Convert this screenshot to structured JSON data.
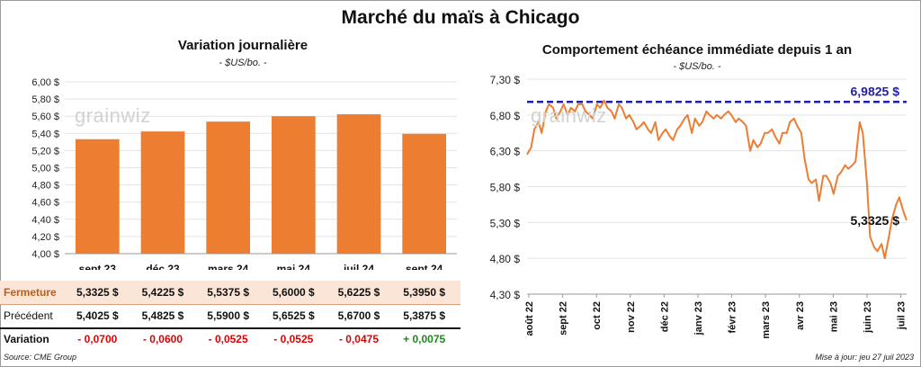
{
  "title": "Marché du maïs à Chicago",
  "left_chart": {
    "title": "Variation journalière",
    "unit": "- $US/bo. -",
    "watermark": "grainwiz"
  },
  "right_chart": {
    "title": "Comportement échéance immédiate depuis 1 an",
    "unit": "- $US/bo. -",
    "watermark": "grainwiz"
  },
  "table": {
    "rows": [
      {
        "label": "Fermeture",
        "values": [
          "5,3325 $",
          "5,4225 $",
          "5,5375 $",
          "5,6000 $",
          "5,6225 $",
          "5,3950 $"
        ]
      },
      {
        "label": "Précédent",
        "values": [
          "5,4025 $",
          "5,4825 $",
          "5,5900 $",
          "5,6525 $",
          "5,6700 $",
          "5,3875 $"
        ]
      },
      {
        "label": "Variation",
        "values": [
          "- 0,0700",
          "- 0,0600",
          "- 0,0525",
          "- 0,0525",
          "- 0,0475",
          "+ 0,0075"
        ]
      }
    ]
  },
  "colors": {
    "bar": "#ed7d31",
    "line": "#ed7d31",
    "reference": "#1f1fa8",
    "negative": "#e00000",
    "positive": "#1a8a1a",
    "row_highlight": "#fbe5d6"
  },
  "source": "Source: CME Group",
  "updated": "Mise à jour: jeu 27 juil 2023",
  "chart_data": [
    {
      "type": "bar",
      "title": "Variation journalière",
      "categories": [
        "sept 23",
        "déc 23",
        "mars 24",
        "mai 24",
        "juil 24",
        "sept 24"
      ],
      "values": [
        5.3325,
        5.4225,
        5.5375,
        5.6,
        5.6225,
        5.395
      ],
      "ylim": [
        4.0,
        6.0
      ],
      "yticks": [
        "4,00 $",
        "4,20 $",
        "4,40 $",
        "4,60 $",
        "4,80 $",
        "5,00 $",
        "5,20 $",
        "5,40 $",
        "5,60 $",
        "5,80 $",
        "6,00 $"
      ],
      "grid": true
    },
    {
      "type": "line",
      "title": "Comportement échéance immédiate depuis 1 an",
      "ylim": [
        4.3,
        7.3
      ],
      "yticks": [
        "4,30 $",
        "4,80 $",
        "5,30 $",
        "5,80 $",
        "6,30 $",
        "6,80 $",
        "7,30 $"
      ],
      "xticks": [
        "août 22",
        "sept 22",
        "oct 22",
        "nov 22",
        "déc 22",
        "janv 23",
        "févr 23",
        "mars 23",
        "avr 23",
        "mai 23",
        "juin 23",
        "juil 23"
      ],
      "grid": true,
      "reference": {
        "value": 6.9825,
        "label": "6,9825 $"
      },
      "last_label": "5,3325 $",
      "series": [
        {
          "x": [
            "2022-07-28",
            "2022-08-01",
            "2022-08-04",
            "2022-08-08",
            "2022-08-11",
            "2022-08-15",
            "2022-08-18",
            "2022-08-22",
            "2022-08-25",
            "2022-08-29",
            "2022-09-01",
            "2022-09-05",
            "2022-09-08",
            "2022-09-12",
            "2022-09-15",
            "2022-09-19",
            "2022-09-22",
            "2022-09-26",
            "2022-09-29",
            "2022-10-03",
            "2022-10-06",
            "2022-10-10",
            "2022-10-13",
            "2022-10-17",
            "2022-10-20",
            "2022-10-24",
            "2022-10-27",
            "2022-10-31",
            "2022-11-03",
            "2022-11-07",
            "2022-11-10",
            "2022-11-14",
            "2022-11-17",
            "2022-11-21",
            "2022-11-24",
            "2022-11-28",
            "2022-12-01",
            "2022-12-05",
            "2022-12-08",
            "2022-12-12",
            "2022-12-15",
            "2022-12-19",
            "2022-12-22",
            "2022-12-26",
            "2022-12-29",
            "2023-01-02",
            "2023-01-05",
            "2023-01-09",
            "2023-01-12",
            "2023-01-16",
            "2023-01-19",
            "2023-01-23",
            "2023-01-26",
            "2023-01-30",
            "2023-02-02",
            "2023-02-06",
            "2023-02-09",
            "2023-02-13",
            "2023-02-16",
            "2023-02-20",
            "2023-02-23",
            "2023-02-27",
            "2023-03-02",
            "2023-03-06",
            "2023-03-09",
            "2023-03-13",
            "2023-03-16",
            "2023-03-20",
            "2023-03-23",
            "2023-03-27",
            "2023-03-30",
            "2023-04-03",
            "2023-04-06",
            "2023-04-10",
            "2023-04-13",
            "2023-04-17",
            "2023-04-20",
            "2023-04-24",
            "2023-04-27",
            "2023-05-01",
            "2023-05-04",
            "2023-05-08",
            "2023-05-11",
            "2023-05-15",
            "2023-05-18",
            "2023-05-22",
            "2023-05-25",
            "2023-05-29",
            "2023-06-01",
            "2023-06-05",
            "2023-06-08",
            "2023-06-12",
            "2023-06-15",
            "2023-06-19",
            "2023-06-22",
            "2023-06-26",
            "2023-06-29",
            "2023-07-03",
            "2023-07-06",
            "2023-07-10",
            "2023-07-13",
            "2023-07-17",
            "2023-07-20",
            "2023-07-24",
            "2023-07-27"
          ],
          "values": [
            6.25,
            6.35,
            6.6,
            6.7,
            6.55,
            6.85,
            6.95,
            6.9,
            6.75,
            6.85,
            6.95,
            6.8,
            6.9,
            6.85,
            6.95,
            6.95,
            6.85,
            6.8,
            6.75,
            6.95,
            6.9,
            7.0,
            6.9,
            6.85,
            6.75,
            6.95,
            6.9,
            6.75,
            6.8,
            6.7,
            6.6,
            6.65,
            6.7,
            6.6,
            6.55,
            6.7,
            6.45,
            6.55,
            6.6,
            6.5,
            6.45,
            6.6,
            6.65,
            6.75,
            6.8,
            6.55,
            6.75,
            6.65,
            6.7,
            6.85,
            6.8,
            6.75,
            6.8,
            6.75,
            6.8,
            6.85,
            6.8,
            6.7,
            6.75,
            6.7,
            6.65,
            6.3,
            6.45,
            6.35,
            6.4,
            6.55,
            6.55,
            6.6,
            6.5,
            6.4,
            6.55,
            6.55,
            6.7,
            6.75,
            6.65,
            6.55,
            6.2,
            5.9,
            5.85,
            5.9,
            5.6,
            5.95,
            5.95,
            5.85,
            5.7,
            5.95,
            6.0,
            6.1,
            6.05,
            6.1,
            6.15,
            6.7,
            6.55,
            5.85,
            5.1,
            4.95,
            4.9,
            5.0,
            4.8,
            5.1,
            5.35,
            5.55,
            5.65,
            5.45,
            5.33
          ]
        }
      ]
    }
  ]
}
